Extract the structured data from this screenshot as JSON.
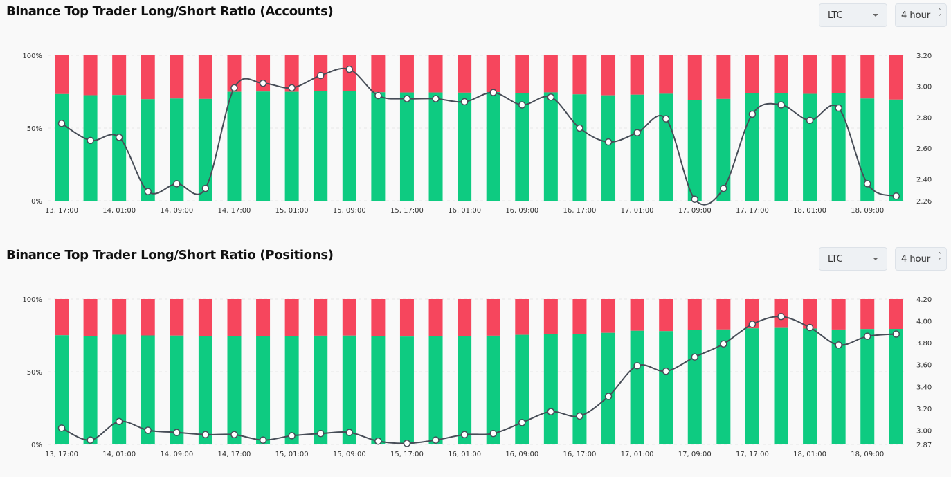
{
  "colors": {
    "long": "#0ecb81",
    "short": "#f6465d",
    "line": "#474d57",
    "background": "#f9f9f9"
  },
  "x_labels": [
    "13, 17:00",
    "14, 01:00",
    "14, 09:00",
    "14, 17:00",
    "15, 01:00",
    "15, 09:00",
    "15, 17:00",
    "16, 01:00",
    "16, 09:00",
    "16, 17:00",
    "17, 01:00",
    "17, 09:00",
    "17, 17:00",
    "18, 01:00",
    "18, 09:00"
  ],
  "chart_data": [
    {
      "type": "bar",
      "title": "Binance Top Trader Long/Short Ratio (Accounts)",
      "coin": "LTC",
      "interval": "4 hour",
      "left_ticks": [
        "100%",
        "50%",
        "0%"
      ],
      "right_ticks": [
        "3.20",
        "3.00",
        "2.80",
        "2.60",
        "2.40",
        "2.26"
      ],
      "ylim_right": [
        2.26,
        3.2
      ],
      "ylim_left": [
        0,
        100
      ],
      "series": [
        {
          "name": "Long/Short Ratio",
          "values": [
            2.76,
            2.65,
            2.67,
            2.32,
            2.37,
            2.34,
            2.99,
            3.02,
            2.99,
            3.07,
            3.11,
            2.94,
            2.92,
            2.92,
            2.9,
            2.96,
            2.88,
            2.93,
            2.73,
            2.64,
            2.7,
            2.79,
            2.27,
            2.34,
            2.82,
            2.88,
            2.78,
            2.86,
            2.37,
            2.29
          ]
        }
      ]
    },
    {
      "type": "bar",
      "title": "Binance Top Trader Long/Short Ratio (Positions)",
      "coin": "LTC",
      "interval": "4 hour",
      "left_ticks": [
        "100%",
        "50%",
        "0%"
      ],
      "right_ticks": [
        "4.20",
        "4.00",
        "3.80",
        "3.60",
        "3.40",
        "3.20",
        "3.00",
        "2.87"
      ],
      "ylim_right": [
        2.87,
        4.2
      ],
      "ylim_left": [
        0,
        100
      ],
      "series": [
        {
          "name": "Long/Short Ratio",
          "values": [
            3.02,
            2.91,
            3.08,
            3.0,
            2.98,
            2.96,
            2.96,
            2.91,
            2.95,
            2.97,
            2.98,
            2.9,
            2.88,
            2.91,
            2.96,
            2.97,
            3.07,
            3.17,
            3.13,
            3.31,
            3.59,
            3.54,
            3.67,
            3.79,
            3.97,
            4.04,
            3.94,
            3.78,
            3.86,
            3.88
          ]
        }
      ]
    }
  ]
}
